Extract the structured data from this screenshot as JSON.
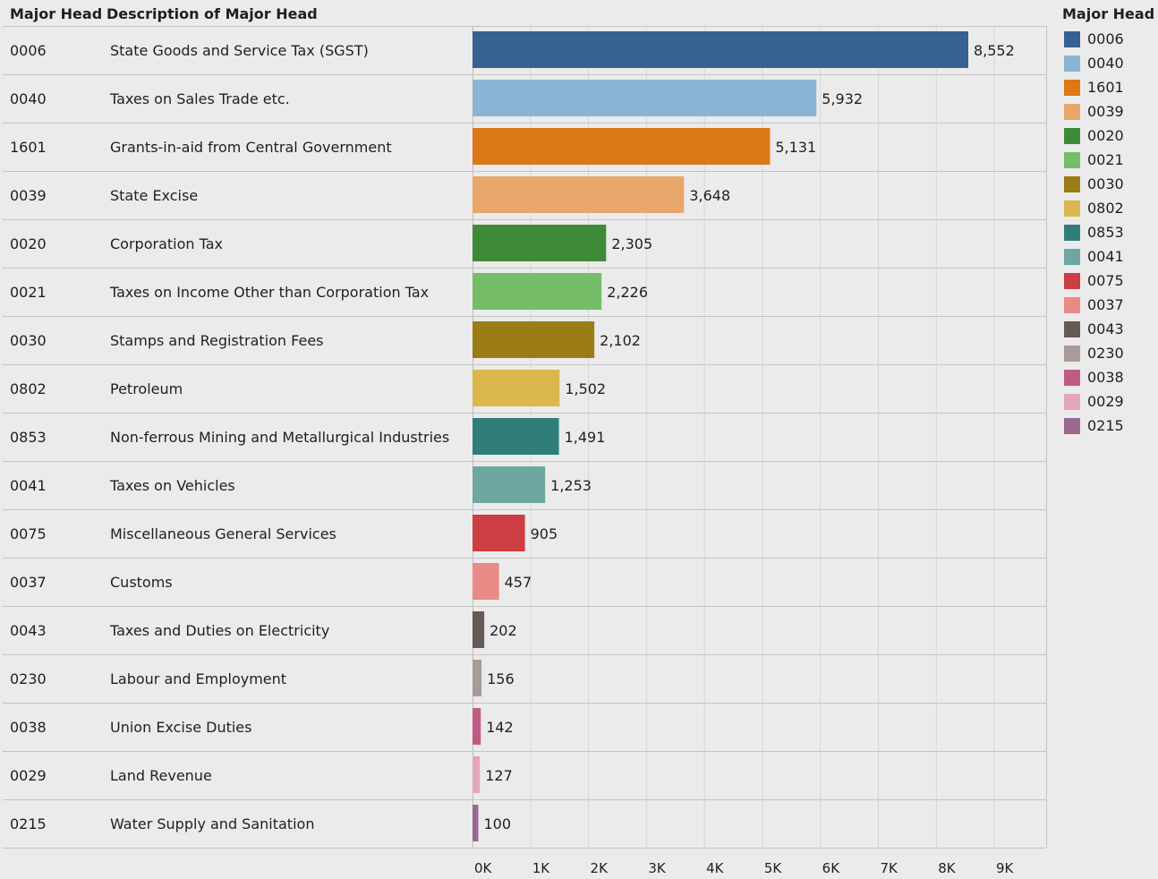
{
  "headers": {
    "code": "Major Head",
    "description": "Description  of Major Head"
  },
  "legend": {
    "title": "Major Head"
  },
  "chart_data": {
    "type": "bar",
    "orientation": "horizontal",
    "categories": [
      "0006",
      "0040",
      "1601",
      "0039",
      "0020",
      "0021",
      "0030",
      "0802",
      "0853",
      "0041",
      "0075",
      "0037",
      "0043",
      "0230",
      "0038",
      "0029",
      "0215"
    ],
    "descriptions": [
      "State Goods and Service Tax (SGST)",
      "Taxes on Sales Trade etc.",
      "Grants-in-aid from Central Government",
      "State Excise",
      "Corporation Tax",
      "Taxes on Income Other than Corporation Tax",
      "Stamps and Registration Fees",
      "Petroleum",
      "Non-ferrous Mining and Metallurgical Industries",
      "Taxes on Vehicles",
      "Miscellaneous General Services",
      "Customs",
      "Taxes and Duties on Electricity",
      "Labour and Employment",
      "Union Excise Duties",
      "Land Revenue",
      "Water Supply and Sanitation"
    ],
    "values": [
      8552,
      5932,
      5131,
      3648,
      2305,
      2226,
      2102,
      1502,
      1491,
      1253,
      905,
      457,
      202,
      156,
      142,
      127,
      100
    ],
    "value_labels": [
      "8,552",
      "5,932",
      "5,131",
      "3,648",
      "2,305",
      "2,226",
      "2,102",
      "1,502",
      "1,491",
      "1,253",
      "905",
      "457",
      "202",
      "156",
      "142",
      "127",
      "100"
    ],
    "colors": [
      "#376190",
      "#8ab4d3",
      "#dd7816",
      "#e8a66a",
      "#3f8a36",
      "#75bd68",
      "#9b7d17",
      "#dbb74c",
      "#2f7f78",
      "#6ea7a0",
      "#cc3e41",
      "#ea8a86",
      "#655a56",
      "#a89c98",
      "#c05c83",
      "#e4a6bd",
      "#9a6991"
    ],
    "xlim": [
      0,
      10000
    ],
    "x_ticks": [
      0,
      1000,
      2000,
      3000,
      4000,
      5000,
      6000,
      7000,
      8000,
      9000
    ],
    "x_tick_labels": [
      "0K",
      "1K",
      "2K",
      "3K",
      "4K",
      "5K",
      "6K",
      "7K",
      "8K",
      "9K"
    ],
    "grid": true,
    "legend_position": "right"
  }
}
